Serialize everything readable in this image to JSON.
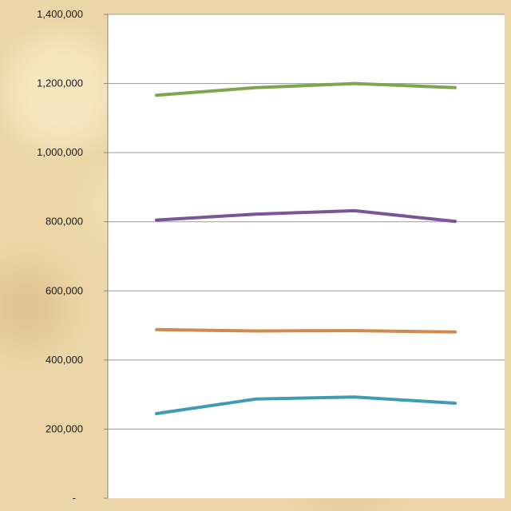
{
  "chart_data": {
    "type": "line",
    "title": "",
    "xlabel": "",
    "ylabel": "",
    "categories": [
      "",
      "",
      "",
      ""
    ],
    "ylim": [
      0,
      1400000
    ],
    "y_ticks": [
      0,
      200000,
      400000,
      600000,
      800000,
      1000000,
      1200000,
      1400000
    ],
    "y_tick_labels": [
      "-",
      "200,000",
      "400,000",
      "600,000",
      "800,000",
      "1,000,000",
      "1,200,000",
      "1,400,000"
    ],
    "grid": true,
    "legend": "none",
    "series": [
      {
        "color": "#7ea64e",
        "values": [
          1166000,
          1188000,
          1200000,
          1188000
        ]
      },
      {
        "color": "#7b5596",
        "values": [
          805000,
          822000,
          832000,
          801000
        ]
      },
      {
        "color": "#d08a4d",
        "values": [
          488000,
          484000,
          485000,
          481000
        ]
      },
      {
        "color": "#3f9bb0",
        "values": [
          245000,
          287000,
          293000,
          275000
        ]
      }
    ]
  }
}
